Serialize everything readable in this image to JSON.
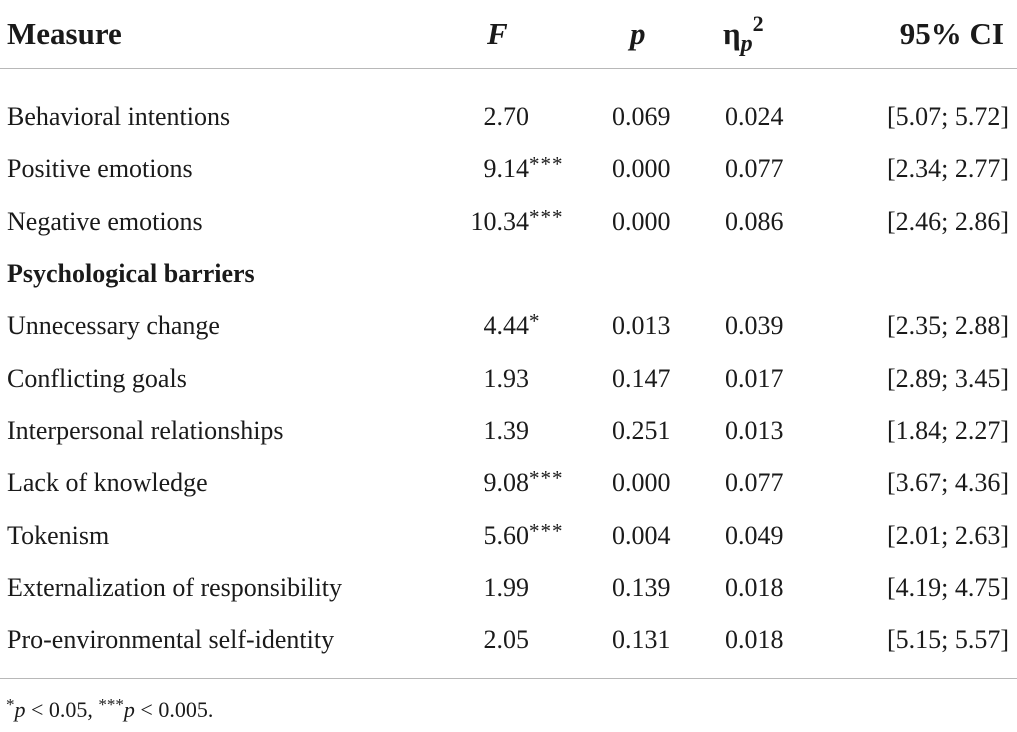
{
  "table": {
    "headers": {
      "measure": "Measure",
      "f": "F",
      "p": "p",
      "eta_base": "η",
      "eta_sub": "p",
      "eta_sup": "2",
      "ci": "95% CI"
    },
    "rows": [
      {
        "measure": "Behavioral intentions",
        "f": "2.70",
        "f_sig": "",
        "p": "0.069",
        "eta": "0.024",
        "ci": "[5.07; 5.72]"
      },
      {
        "measure": "Positive emotions",
        "f": "9.14",
        "f_sig": "***",
        "p": "0.000",
        "eta": "0.077",
        "ci": "[2.34; 2.77]"
      },
      {
        "measure": "Negative emotions",
        "f": "10.34",
        "f_sig": "***",
        "p": "0.000",
        "eta": "0.086",
        "ci": "[2.46; 2.86]"
      },
      {
        "measure": "Psychological barriers",
        "f": "",
        "f_sig": "",
        "p": "",
        "eta": "",
        "ci": ""
      },
      {
        "measure": "Unnecessary change",
        "f": "4.44",
        "f_sig": "*",
        "p": "0.013",
        "eta": "0.039",
        "ci": "[2.35; 2.88]"
      },
      {
        "measure": "Conflicting goals",
        "f": "1.93",
        "f_sig": "",
        "p": "0.147",
        "eta": "0.017",
        "ci": "[2.89; 3.45]"
      },
      {
        "measure": "Interpersonal relationships",
        "f": "1.39",
        "f_sig": "",
        "p": "0.251",
        "eta": "0.013",
        "ci": "[1.84; 2.27]"
      },
      {
        "measure": "Lack of knowledge",
        "f": "9.08",
        "f_sig": "***",
        "p": "0.000",
        "eta": "0.077",
        "ci": "[3.67; 4.36]"
      },
      {
        "measure": "Tokenism",
        "f": "5.60",
        "f_sig": "***",
        "p": "0.004",
        "eta": "0.049",
        "ci": "[2.01; 2.63]"
      },
      {
        "measure": "Externalization of responsibility",
        "f": "1.99",
        "f_sig": "",
        "p": "0.139",
        "eta": "0.018",
        "ci": "[4.19; 4.75]"
      },
      {
        "measure": "Pro-environmental self-identity",
        "f": "2.05",
        "f_sig": "",
        "p": "0.131",
        "eta": "0.018",
        "ci": "[5.15; 5.57]"
      }
    ]
  },
  "footnote": {
    "star1": "*",
    "p1": "p",
    "rest1": " < 0.05, ",
    "star3": "***",
    "p2": "p",
    "rest2": " < 0.005."
  }
}
